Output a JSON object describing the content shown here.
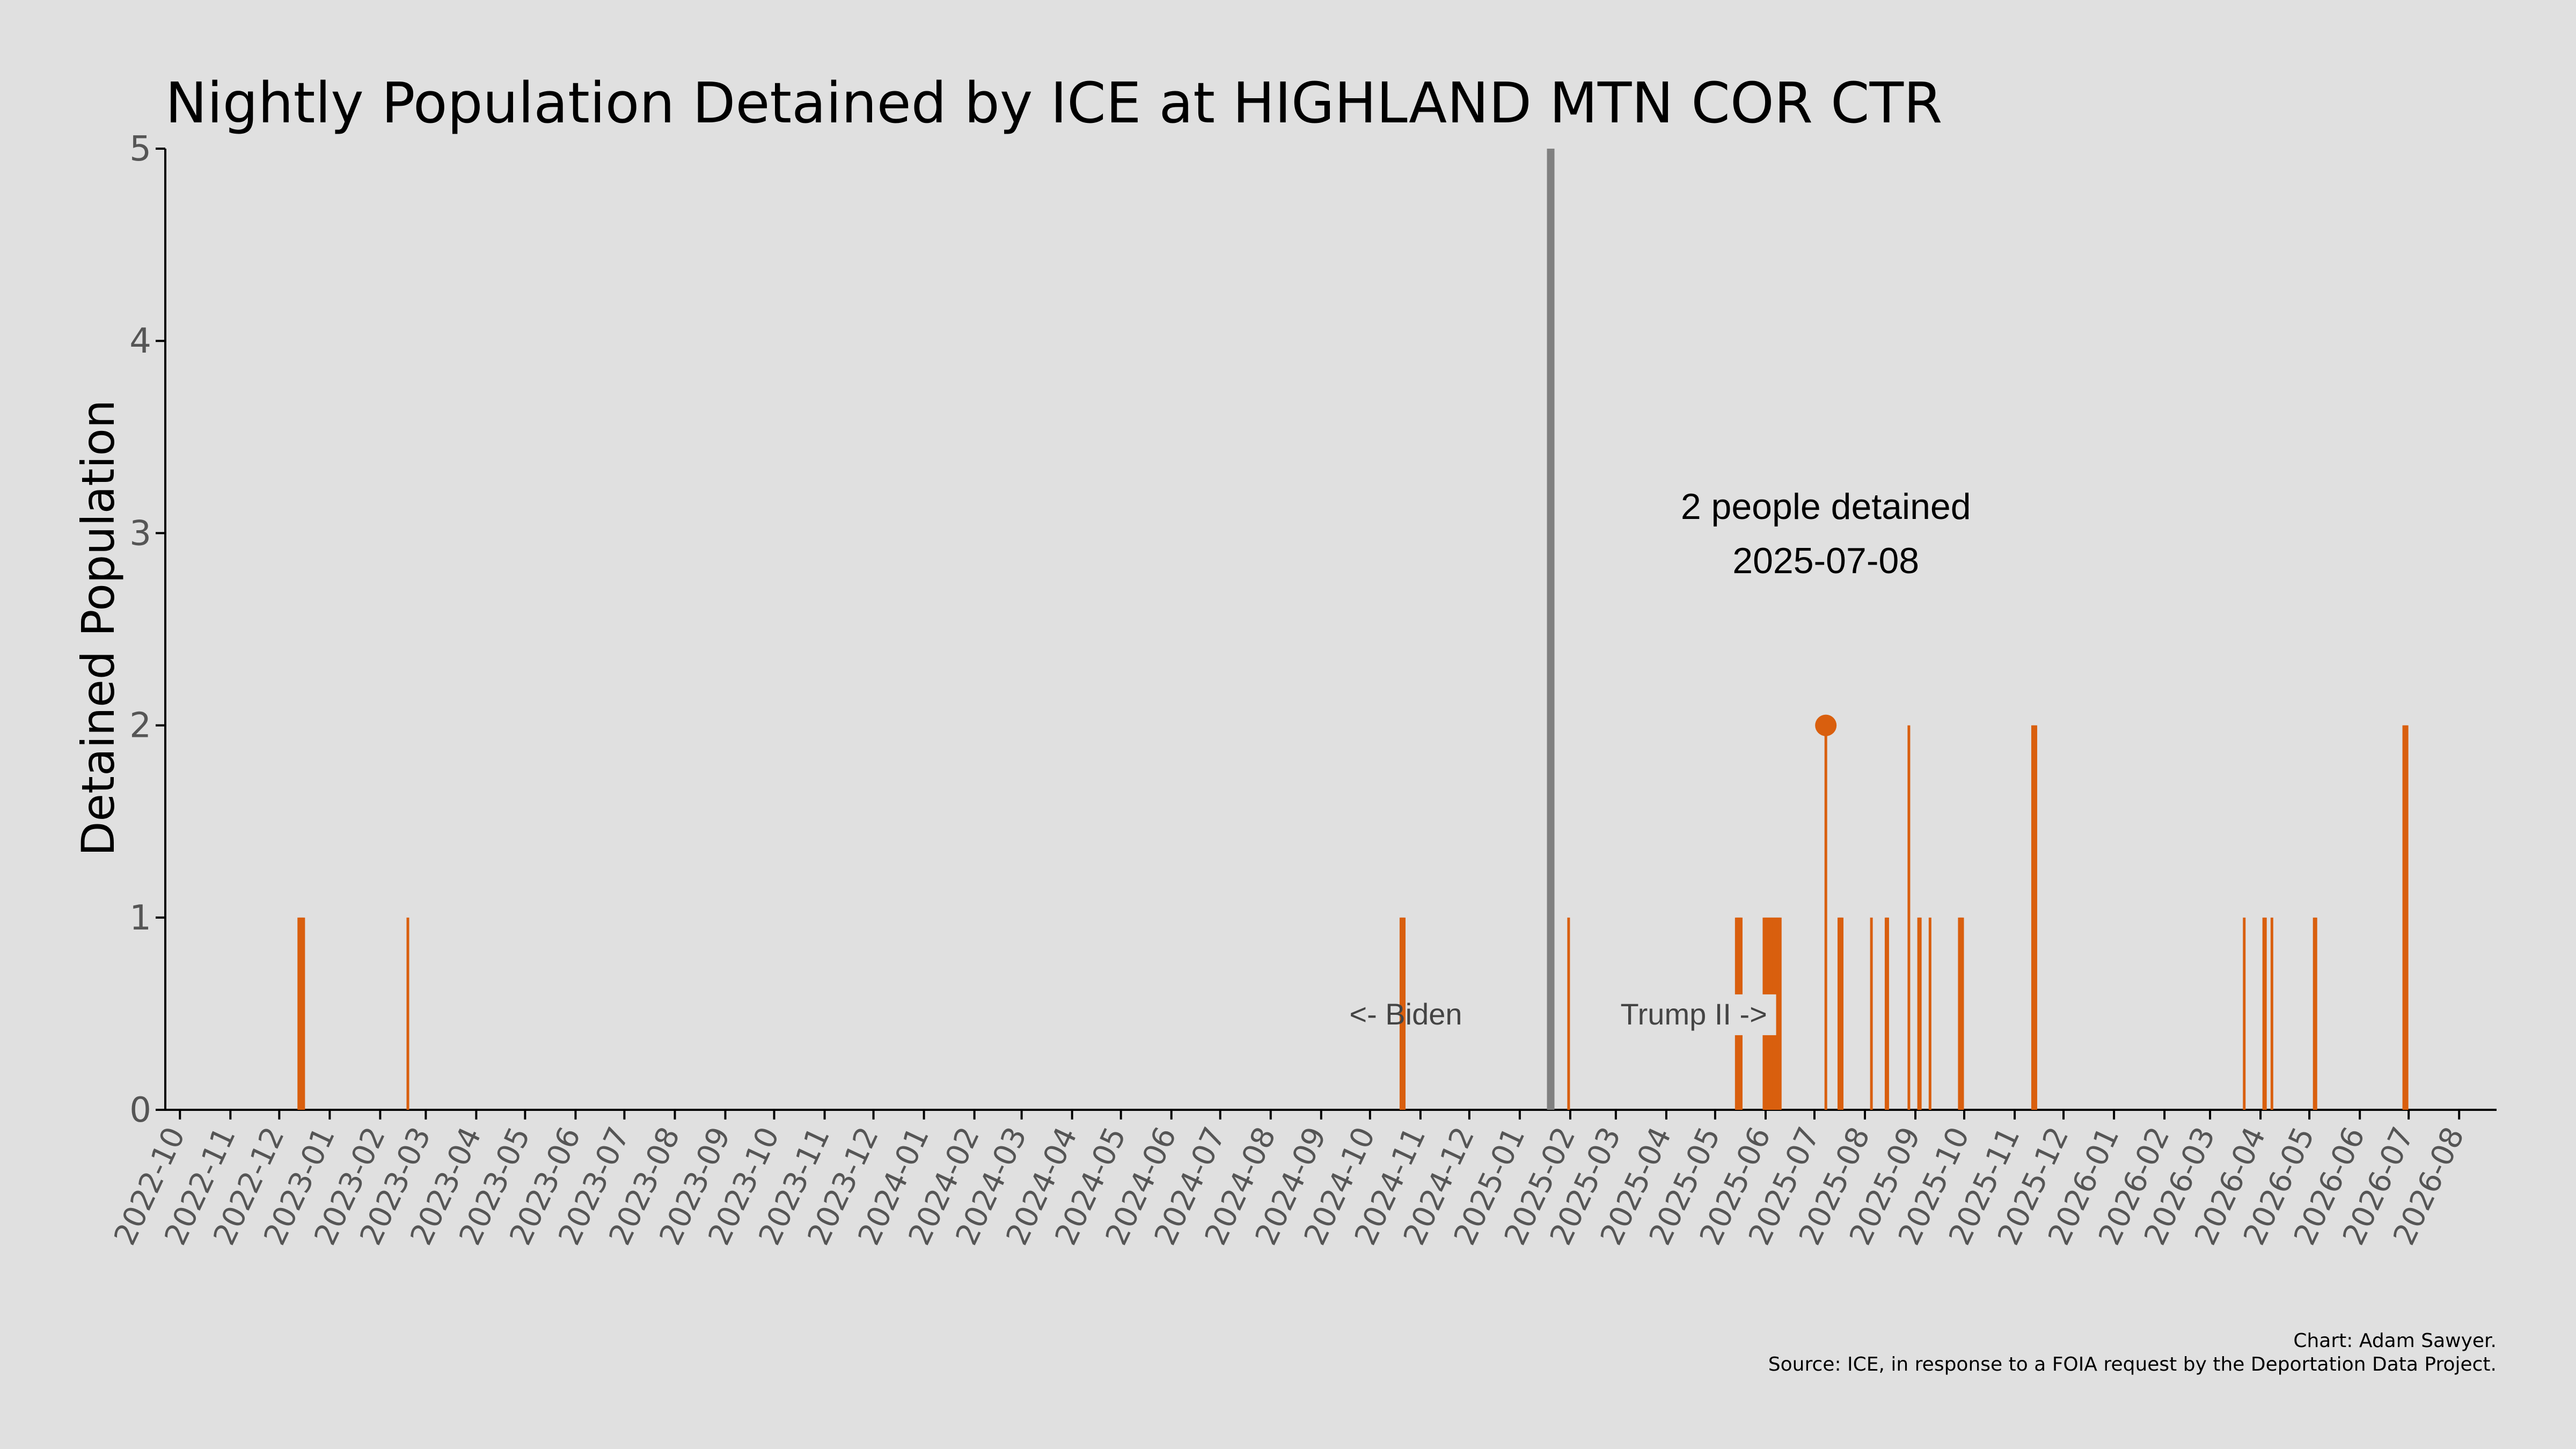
{
  "chart_data": {
    "type": "bar",
    "title": "Nightly Population Detained by ICE at HIGHLAND MTN COR CTR",
    "ylabel": "Detained Population",
    "xlabel": "",
    "ylim": [
      0,
      5
    ],
    "yticks": [
      "0",
      "1",
      "2",
      "3",
      "4",
      "5"
    ],
    "xlim": [
      "2022-09-22",
      "2026-08-24"
    ],
    "xticks": [
      "2022-10",
      "2022-11",
      "2022-12",
      "2023-01",
      "2023-02",
      "2023-03",
      "2023-04",
      "2023-05",
      "2023-06",
      "2023-07",
      "2023-08",
      "2023-09",
      "2023-10",
      "2023-11",
      "2023-12",
      "2024-01",
      "2024-02",
      "2024-03",
      "2024-04",
      "2024-05",
      "2024-06",
      "2024-07",
      "2024-08",
      "2024-09",
      "2024-10",
      "2024-11",
      "2024-12",
      "2025-01",
      "2025-02",
      "2025-03",
      "2025-04",
      "2025-05",
      "2025-06",
      "2025-07",
      "2025-08",
      "2025-09",
      "2025-10",
      "2025-11",
      "2025-12",
      "2026-01",
      "2026-02",
      "2026-03",
      "2026-04",
      "2026-05",
      "2026-06",
      "2026-07",
      "2026-08"
    ],
    "bar_color": "#d95f0e",
    "points": [
      {
        "date": "2022-12-13",
        "value": 1
      },
      {
        "date": "2022-12-14",
        "value": 1
      },
      {
        "date": "2022-12-15",
        "value": 1
      },
      {
        "date": "2022-12-16",
        "value": 1
      },
      {
        "date": "2023-02-18",
        "value": 1
      },
      {
        "date": "2024-10-20",
        "value": 1
      },
      {
        "date": "2024-10-21",
        "value": 1
      },
      {
        "date": "2024-10-22",
        "value": 1
      },
      {
        "date": "2025-01-31",
        "value": 1
      },
      {
        "date": "2025-05-14",
        "value": 1
      },
      {
        "date": "2025-05-15",
        "value": 1
      },
      {
        "date": "2025-05-16",
        "value": 1
      },
      {
        "date": "2025-05-17",
        "value": 1
      },
      {
        "date": "2025-05-31",
        "value": 1
      },
      {
        "date": "2025-06-01",
        "value": 1
      },
      {
        "date": "2025-06-02",
        "value": 1
      },
      {
        "date": "2025-06-03",
        "value": 1
      },
      {
        "date": "2025-06-04",
        "value": 1
      },
      {
        "date": "2025-06-05",
        "value": 1
      },
      {
        "date": "2025-06-06",
        "value": 1
      },
      {
        "date": "2025-06-07",
        "value": 1
      },
      {
        "date": "2025-06-08",
        "value": 1
      },
      {
        "date": "2025-06-09",
        "value": 1
      },
      {
        "date": "2025-06-10",
        "value": 1
      },
      {
        "date": "2025-07-08",
        "value": 2
      },
      {
        "date": "2025-07-16",
        "value": 1
      },
      {
        "date": "2025-07-17",
        "value": 1
      },
      {
        "date": "2025-07-18",
        "value": 1
      },
      {
        "date": "2025-08-05",
        "value": 1
      },
      {
        "date": "2025-08-14",
        "value": 1
      },
      {
        "date": "2025-08-15",
        "value": 1
      },
      {
        "date": "2025-08-28",
        "value": 2
      },
      {
        "date": "2025-09-03",
        "value": 1
      },
      {
        "date": "2025-09-04",
        "value": 1
      },
      {
        "date": "2025-09-10",
        "value": 1
      },
      {
        "date": "2025-09-28",
        "value": 1
      },
      {
        "date": "2025-09-29",
        "value": 1
      },
      {
        "date": "2025-09-30",
        "value": 1
      },
      {
        "date": "2025-11-12",
        "value": 2
      },
      {
        "date": "2025-11-13",
        "value": 2
      },
      {
        "date": "2025-11-14",
        "value": 2
      },
      {
        "date": "2026-03-22",
        "value": 1
      },
      {
        "date": "2026-04-03",
        "value": 1
      },
      {
        "date": "2026-04-04",
        "value": 1
      },
      {
        "date": "2026-04-08",
        "value": 1
      },
      {
        "date": "2026-05-04",
        "value": 1
      },
      {
        "date": "2026-05-05",
        "value": 1
      },
      {
        "date": "2026-06-28",
        "value": 2
      },
      {
        "date": "2026-06-29",
        "value": 2
      },
      {
        "date": "2026-06-30",
        "value": 2
      }
    ],
    "highlight": {
      "date": "2025-07-08",
      "value": 2,
      "label_line1": "2 people detained",
      "label_line2": "2025-07-08"
    },
    "inauguration_line": {
      "date": "2025-01-20",
      "color": "#808080"
    },
    "era_labels": {
      "before": "<- Biden",
      "after": "Trump II ->"
    },
    "credit_line1": "Chart: Adam Sawyer.",
    "credit_line2": "Source: ICE, in response to a FOIA request by the Deportation Data Project."
  }
}
